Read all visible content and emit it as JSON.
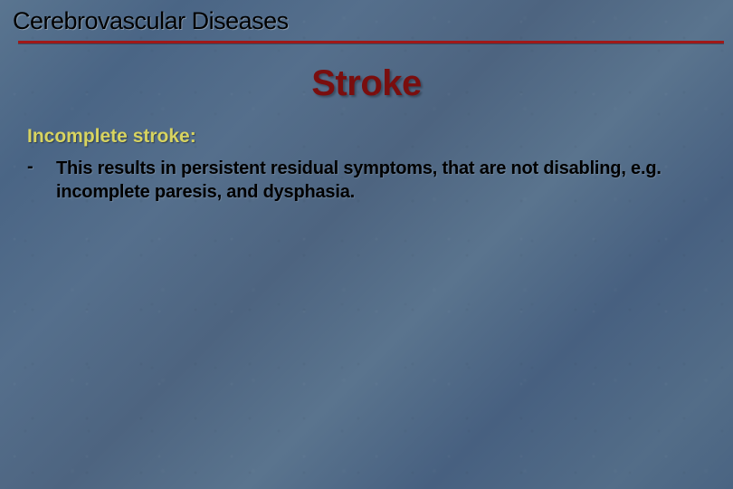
{
  "header": {
    "text": "Cerebrovascular Diseases"
  },
  "title": {
    "text": "Stroke",
    "color": "#7a0e0e"
  },
  "subheading": {
    "text": "Incomplete stroke:",
    "color": "#d8d460"
  },
  "bullet": {
    "marker": "-",
    "text": "This results in persistent residual symptoms, that are not disabling, e.g. incomplete paresis, and dysphasia."
  },
  "styling": {
    "background_base": "#4d6a88",
    "divider_color": "#a01818",
    "header_text_color": "#000000",
    "body_text_color": "#000000",
    "slide_width": 810,
    "slide_height": 540,
    "title_fontsize": 40,
    "header_fontsize": 27,
    "subheading_fontsize": 21,
    "body_fontsize": 20
  }
}
